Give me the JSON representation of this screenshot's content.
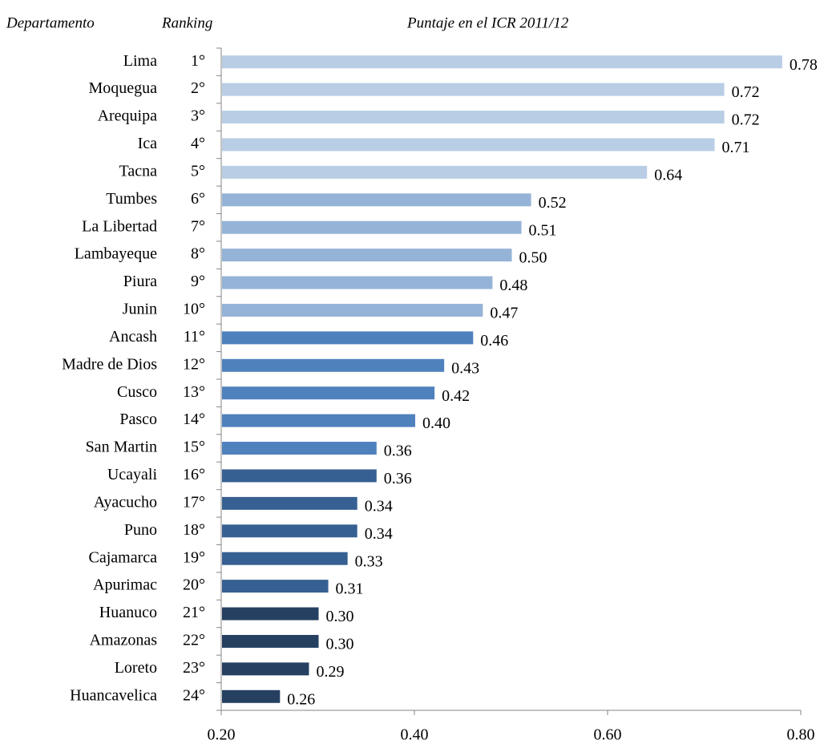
{
  "chart_data": {
    "type": "bar",
    "orientation": "horizontal",
    "headers": [
      "Departamento",
      "Ranking",
      "Puntaje en el ICR 2011/12"
    ],
    "categories": [
      "Lima",
      "Moquegua",
      "Arequipa",
      "Ica",
      "Tacna",
      "Tumbes",
      "La Libertad",
      "Lambayeque",
      "Piura",
      "Junin",
      "Ancash",
      "Madre de Dios",
      "Cusco",
      "Pasco",
      "San Martin",
      "Ucayali",
      "Ayacucho",
      "Puno",
      "Cajamarca",
      "Apurimac",
      "Huanuco",
      "Amazonas",
      "Loreto",
      "Huancavelica"
    ],
    "rankings": [
      "1°",
      "2°",
      "3°",
      "4°",
      "5°",
      "6°",
      "7°",
      "8°",
      "9°",
      "10°",
      "11°",
      "12°",
      "13°",
      "14°",
      "15°",
      "16°",
      "17°",
      "18°",
      "19°",
      "20°",
      "21°",
      "22°",
      "23°",
      "24°"
    ],
    "values": [
      0.78,
      0.72,
      0.72,
      0.71,
      0.64,
      0.52,
      0.51,
      0.5,
      0.48,
      0.47,
      0.46,
      0.43,
      0.42,
      0.4,
      0.36,
      0.36,
      0.34,
      0.34,
      0.33,
      0.31,
      0.3,
      0.3,
      0.29,
      0.26
    ],
    "value_labels": [
      "0.78",
      "0.72",
      "0.72",
      "0.71",
      "0.64",
      "0.52",
      "0.51",
      "0.50",
      "0.48",
      "0.47",
      "0.46",
      "0.43",
      "0.42",
      "0.40",
      "0.36",
      "0.36",
      "0.34",
      "0.34",
      "0.33",
      "0.31",
      "0.30",
      "0.30",
      "0.29",
      "0.26"
    ],
    "colors": [
      "#b9cde5",
      "#b9cde5",
      "#b9cde5",
      "#b9cde5",
      "#b9cde5",
      "#95b3d7",
      "#95b3d7",
      "#95b3d7",
      "#95b3d7",
      "#95b3d7",
      "#4f81bd",
      "#4f81bd",
      "#4f81bd",
      "#4f81bd",
      "#4f81bd",
      "#376092",
      "#376092",
      "#376092",
      "#376092",
      "#376092",
      "#254061",
      "#254061",
      "#254061",
      "#254061"
    ],
    "xlim": [
      0.2,
      0.8
    ],
    "xticks": [
      {
        "value": 0.2,
        "label": "0.20"
      },
      {
        "value": 0.4,
        "label": "0.40"
      },
      {
        "value": 0.6,
        "label": "0.60"
      },
      {
        "value": 0.8,
        "label": "0.80"
      }
    ]
  }
}
